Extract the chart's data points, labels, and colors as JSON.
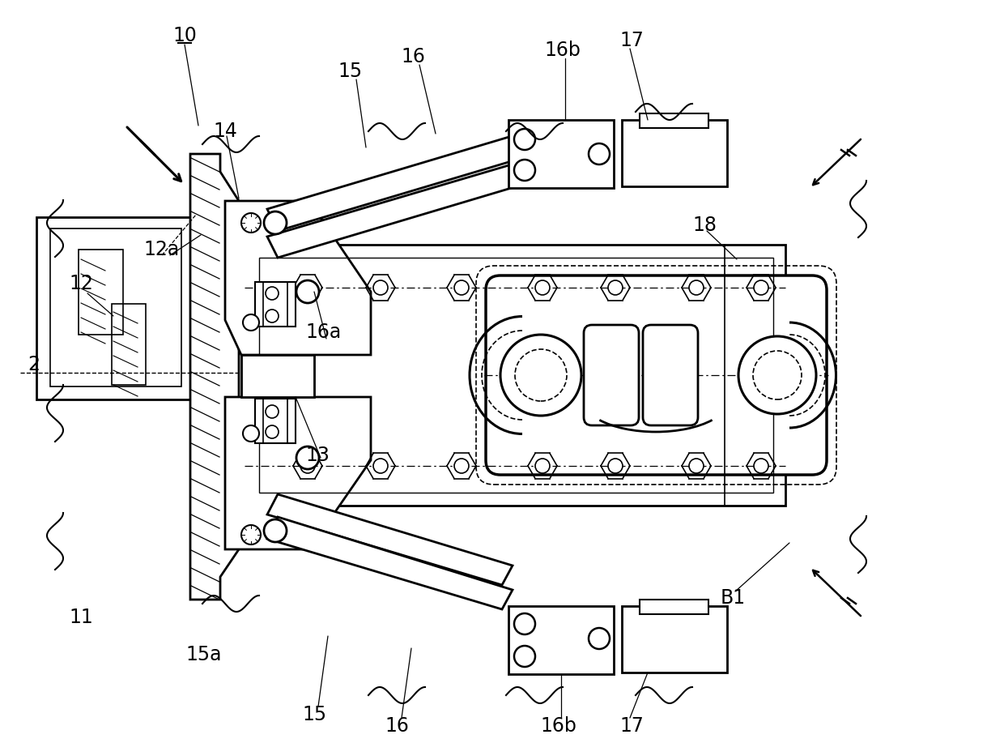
{
  "background_color": "#ffffff",
  "line_color": "#000000",
  "labels_img": [
    [
      "10",
      228,
      45
    ],
    [
      "2",
      42,
      450
    ],
    [
      "11",
      100,
      762
    ],
    [
      "12",
      100,
      355
    ],
    [
      "12a",
      200,
      308
    ],
    [
      "13",
      392,
      562
    ],
    [
      "14",
      278,
      162
    ],
    [
      "15",
      432,
      88
    ],
    [
      "15",
      388,
      882
    ],
    [
      "15a",
      252,
      808
    ],
    [
      "16",
      510,
      70
    ],
    [
      "16",
      490,
      896
    ],
    [
      "16a",
      400,
      410
    ],
    [
      "16b",
      692,
      62
    ],
    [
      "16b",
      688,
      896
    ],
    [
      "17",
      778,
      50
    ],
    [
      "17",
      778,
      896
    ],
    [
      "18",
      870,
      278
    ],
    [
      "B1",
      905,
      738
    ]
  ]
}
